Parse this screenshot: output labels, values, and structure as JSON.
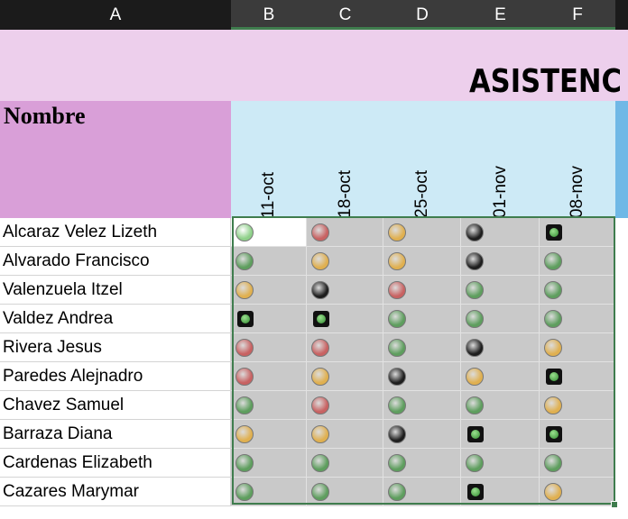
{
  "column_headers": [
    "A",
    "B",
    "C",
    "D",
    "E",
    "F"
  ],
  "title": "ASISTENC",
  "name_header": "Nombre",
  "dates": [
    "11-oct",
    "18-oct",
    "25-oct",
    "01-nov",
    "08-nov"
  ],
  "names": [
    "Alcaraz Velez Lizeth",
    "Alvarado Francisco",
    "Valenzuela Itzel",
    "Valdez Andrea",
    "Rivera Jesus",
    "Paredes Alejnadro",
    "Chavez Samuel",
    "Barraza Diana",
    "Cardenas Elizabeth",
    "Cazares Marymar"
  ]
}
